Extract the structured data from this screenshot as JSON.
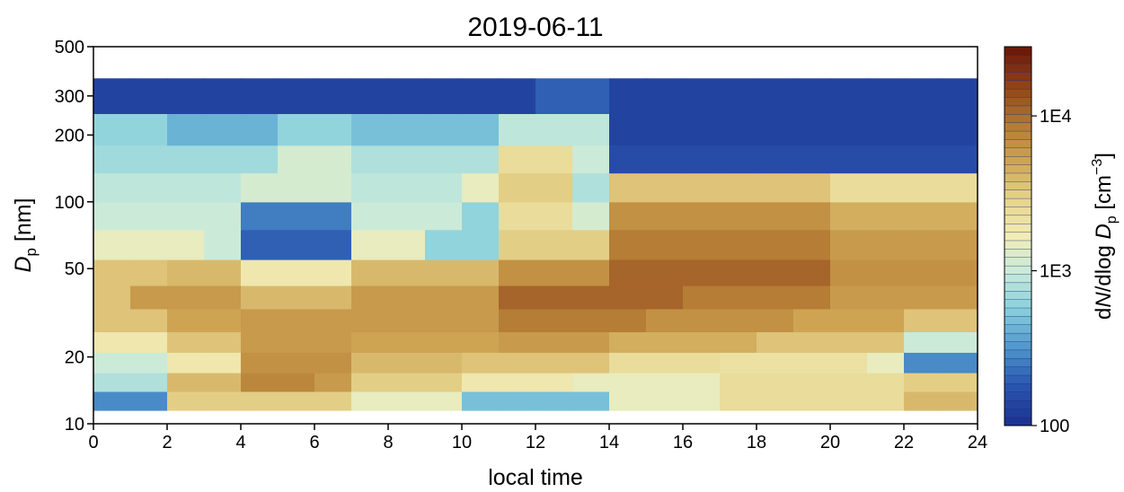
{
  "chart_data": {
    "type": "heatmap",
    "title": "2019-06-11",
    "xlabel": "local time",
    "ylabel_parts": [
      "D",
      "p",
      " [nm]"
    ],
    "colorbar_label_parts": [
      "d",
      "N",
      "/dlog ",
      "D",
      "p",
      " [cm",
      "−3",
      "]"
    ],
    "xlim": [
      0,
      24
    ],
    "xticks": [
      0,
      2,
      4,
      6,
      8,
      10,
      12,
      14,
      16,
      18,
      20,
      22,
      24
    ],
    "ylim": [
      10,
      500
    ],
    "yticks": [
      10,
      20,
      50,
      100,
      200,
      300,
      500
    ],
    "ylog": true,
    "zlim": [
      100,
      28000
    ],
    "zticks": [
      100,
      {
        "value": 1000,
        "label": "1E3"
      },
      {
        "value": 10000,
        "label": "1E4"
      }
    ],
    "zlog": true,
    "colormap": [
      "#1c3593",
      "#2a57b0",
      "#4f97cc",
      "#86cfdc",
      "#c8eadb",
      "#f1ecb6",
      "#e6d48d",
      "#cfa655",
      "#b47b33",
      "#92451c",
      "#6e1a08"
    ],
    "x_bins": [
      0,
      1,
      2,
      3,
      4,
      5,
      6,
      7,
      8,
      9,
      10,
      11,
      12,
      13,
      14,
      15,
      16,
      17,
      18,
      19,
      20,
      21,
      22,
      23,
      24
    ],
    "y_bins": [
      11.5,
      14,
      17,
      21,
      26,
      33,
      42,
      55,
      75,
      100,
      135,
      180,
      250,
      360
    ],
    "z": [
      [
        300,
        300,
        3000,
        3000,
        3000,
        3000,
        3000,
        1500,
        1500,
        1500,
        500,
        500,
        500,
        500,
        1500,
        1500,
        1500,
        2500,
        2500,
        2500,
        2500,
        2500,
        4000,
        4000
      ],
      [
        800,
        800,
        4000,
        4000,
        8000,
        8000,
        6000,
        3000,
        3000,
        3000,
        2000,
        2000,
        2000,
        1500,
        1500,
        1500,
        1500,
        2500,
        2500,
        2500,
        2500,
        2500,
        3000,
        3000
      ],
      [
        1000,
        1000,
        2000,
        2000,
        7000,
        7000,
        7000,
        4000,
        4000,
        4000,
        3500,
        3500,
        3500,
        3500,
        2500,
        2500,
        2500,
        2200,
        2200,
        2200,
        2200,
        1500,
        300,
        300
      ],
      [
        2000,
        2000,
        3500,
        3500,
        6000,
        6000,
        6000,
        5000,
        5000,
        5000,
        5000,
        6000,
        6000,
        6000,
        4500,
        4500,
        4500,
        4500,
        3500,
        3500,
        3500,
        3500,
        1000,
        1000
      ],
      [
        3500,
        3500,
        5000,
        5000,
        5500,
        5500,
        5500,
        6000,
        6000,
        6000,
        6000,
        9000,
        9000,
        9000,
        9000,
        7000,
        7000,
        7000,
        7000,
        5000,
        5000,
        5000,
        3500,
        3500
      ],
      [
        3500,
        5500,
        5500,
        5500,
        4000,
        4000,
        4000,
        5500,
        5500,
        5500,
        5500,
        11000,
        11000,
        11000,
        11000,
        11000,
        9000,
        9000,
        9000,
        9000,
        6000,
        6000,
        6000,
        6000
      ],
      [
        3500,
        3500,
        4000,
        4000,
        2000,
        2000,
        2000,
        4000,
        4000,
        4000,
        4000,
        7000,
        7000,
        7000,
        11000,
        11000,
        11000,
        11000,
        11000,
        11000,
        6500,
        6500,
        6500,
        6500
      ],
      [
        1500,
        1500,
        1500,
        1000,
        200,
        200,
        200,
        1500,
        1500,
        600,
        600,
        3000,
        3000,
        3000,
        9000,
        9000,
        9000,
        9000,
        9000,
        9000,
        5500,
        5500,
        5500,
        5500
      ],
      [
        1000,
        1000,
        1000,
        1000,
        250,
        250,
        250,
        1000,
        1000,
        1000,
        600,
        2500,
        2500,
        1200,
        7000,
        7000,
        7000,
        7000,
        7000,
        7000,
        4500,
        4500,
        4500,
        4500
      ],
      [
        900,
        900,
        900,
        900,
        1200,
        1200,
        1200,
        900,
        900,
        900,
        1500,
        3000,
        3000,
        800,
        3500,
        3500,
        3500,
        3500,
        3500,
        3500,
        2500,
        2500,
        2500,
        2500
      ],
      [
        700,
        700,
        700,
        700,
        700,
        1200,
        1200,
        800,
        800,
        800,
        800,
        2500,
        2500,
        1000,
        150,
        150,
        150,
        150,
        150,
        150,
        150,
        150,
        150,
        150
      ],
      [
        600,
        600,
        400,
        400,
        400,
        600,
        600,
        500,
        500,
        500,
        500,
        900,
        900,
        900,
        130,
        130,
        130,
        130,
        130,
        130,
        130,
        130,
        130,
        130
      ],
      [
        130,
        130,
        130,
        130,
        130,
        130,
        130,
        130,
        130,
        130,
        130,
        130,
        200,
        200,
        130,
        130,
        130,
        130,
        130,
        130,
        130,
        130,
        130,
        130
      ]
    ]
  }
}
